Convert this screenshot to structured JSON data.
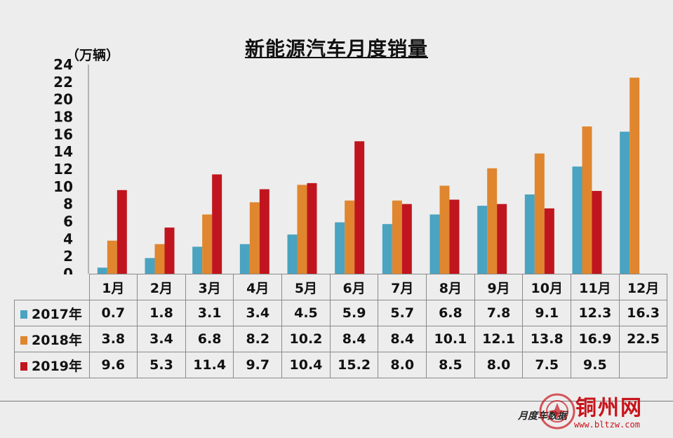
{
  "chart_data": {
    "type": "bar",
    "title": "新能源汽车月度销量",
    "ylabel": "（万辆）",
    "ylim": [
      0,
      24
    ],
    "yticks": [
      "0",
      "2",
      "4",
      "6",
      "8",
      "10",
      "12",
      "14",
      "16",
      "18",
      "20",
      "22",
      "24"
    ],
    "categories": [
      "1月",
      "2月",
      "3月",
      "4月",
      "5月",
      "6月",
      "7月",
      "8月",
      "9月",
      "10月",
      "11月",
      "12月"
    ],
    "series": [
      {
        "name": "2017年",
        "color": "#4aa3c0",
        "values": [
          0.7,
          1.8,
          3.1,
          3.4,
          4.5,
          5.9,
          5.7,
          6.8,
          7.8,
          9.1,
          12.3,
          16.3
        ],
        "labels": [
          "0.7",
          "1.8",
          "3.1",
          "3.4",
          "4.5",
          "5.9",
          "5.7",
          "6.8",
          "7.8",
          "9.1",
          "12.3",
          "16.3"
        ]
      },
      {
        "name": "2018年",
        "color": "#e0862e",
        "values": [
          3.8,
          3.4,
          6.8,
          8.2,
          10.2,
          8.4,
          8.4,
          10.1,
          12.1,
          13.8,
          16.9,
          22.5
        ],
        "labels": [
          "3.8",
          "3.4",
          "6.8",
          "8.2",
          "10.2",
          "8.4",
          "8.4",
          "10.1",
          "12.1",
          "13.8",
          "16.9",
          "22.5"
        ]
      },
      {
        "name": "2019年",
        "color": "#c0151f",
        "values": [
          9.6,
          5.3,
          11.4,
          9.7,
          10.4,
          15.2,
          8.0,
          8.5,
          8.0,
          7.5,
          9.5,
          null
        ],
        "labels": [
          "9.6",
          "5.3",
          "11.4",
          "9.7",
          "10.4",
          "15.2",
          "8.0",
          "8.5",
          "8.0",
          "7.5",
          "9.5",
          ""
        ]
      }
    ],
    "grid": false,
    "legend": "table-below"
  },
  "footer": {
    "text": "月度车数据",
    "watermark": "铜州网",
    "url": "www.bltzw.com"
  }
}
